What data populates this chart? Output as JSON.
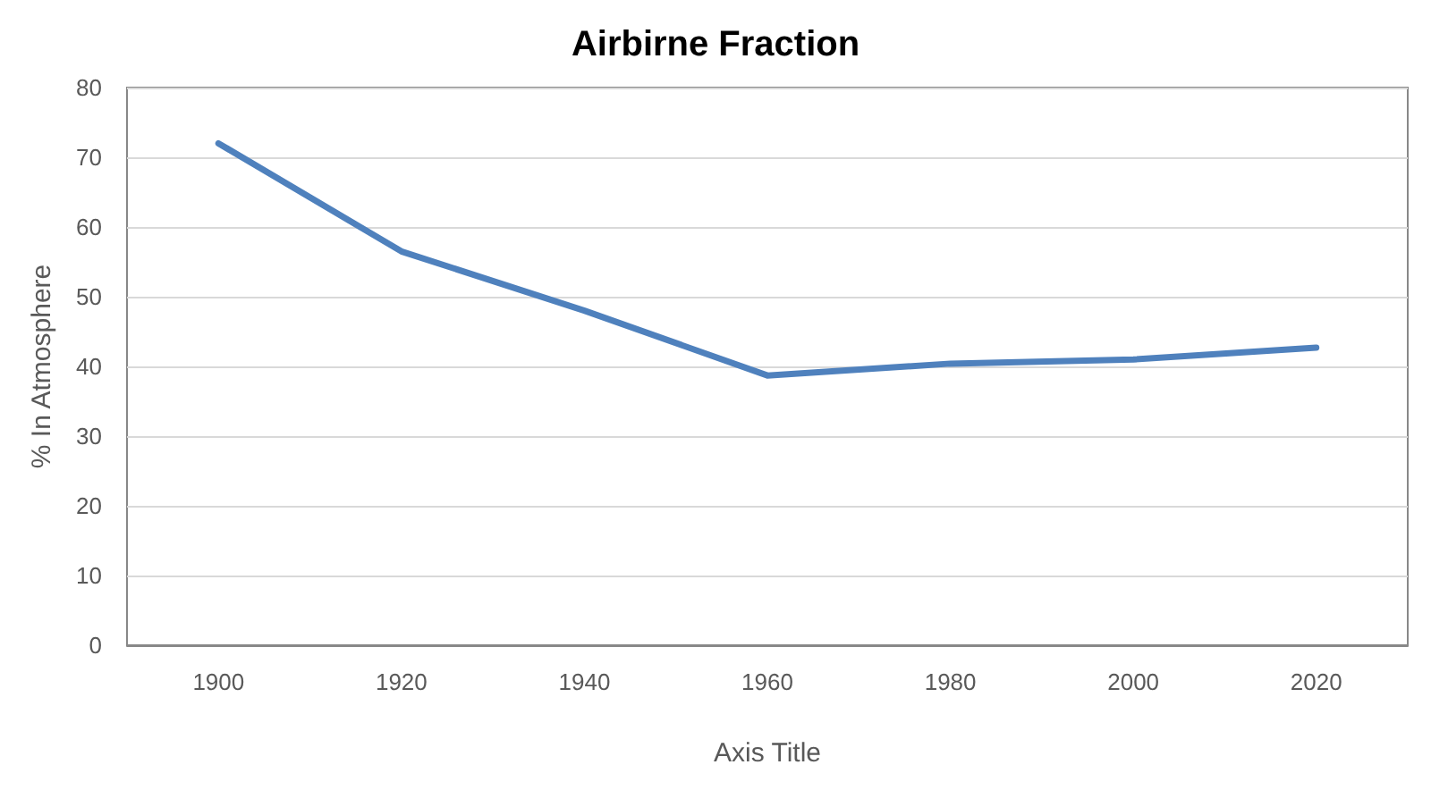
{
  "chart_data": {
    "type": "line",
    "title": "Airbirne Fraction",
    "xlabel": "Axis Title",
    "ylabel": "% In Atmosphere",
    "categories": [
      "1900",
      "1920",
      "1940",
      "1960",
      "1980",
      "2000",
      "2020"
    ],
    "series": [
      {
        "color": "#4f81bd",
        "values": [
          72,
          56.5,
          48,
          38.7,
          40.4,
          41,
          42.7
        ]
      }
    ],
    "ylim": [
      0,
      80
    ],
    "yticks": [
      0,
      10,
      20,
      30,
      40,
      50,
      60,
      70,
      80
    ],
    "grid": "y",
    "marker": "none",
    "line_style": "solid"
  }
}
